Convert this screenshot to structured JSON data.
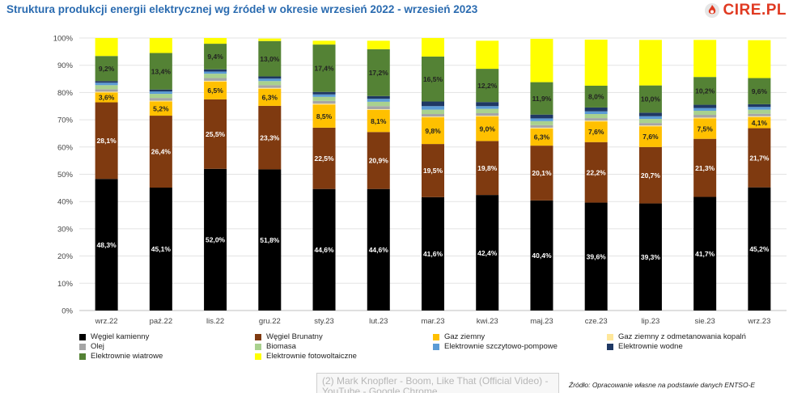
{
  "title": "Struktura produkcji energii elektrycznej wg źródeł w okresie wrzesień 2022 - wrzesień 2023",
  "logo_text": "CIRE.PL",
  "source": "Źródło: Opracowanie własne na podstawie danych ENTSO-E",
  "tooltip_text": "(2) Mark Knopfler - Boom, Like That (Official Video) - YouTube - Google Chrome",
  "colors": {
    "title": "#2a6bb0",
    "logo": "#e03a22"
  },
  "chart_data": {
    "type": "bar",
    "stacked": true,
    "percent": true,
    "categories": [
      "wrz.22",
      "paź.22",
      "lis.22",
      "gru.22",
      "sty.23",
      "lut.23",
      "mar.23",
      "kwi.23",
      "maj.23",
      "cze.23",
      "lip.23",
      "sie.23",
      "wrz.23"
    ],
    "y_ticks": [
      "0%",
      "10%",
      "20%",
      "30%",
      "40%",
      "50%",
      "60%",
      "70%",
      "80%",
      "90%",
      "100%"
    ],
    "ylim": [
      0,
      100
    ],
    "grid": true,
    "legend_position": "bottom",
    "series": [
      {
        "name": "Węgiel kamienny",
        "color": "#000000",
        "label_color": "#ffffff",
        "values": [
          48.3,
          45.1,
          52.0,
          51.8,
          44.6,
          44.6,
          41.6,
          42.4,
          40.4,
          39.6,
          39.3,
          41.7,
          45.2
        ],
        "labels": [
          "48,3%",
          "45,1%",
          "52,0%",
          "51,8%",
          "44,6%",
          "44,6%",
          "41,6%",
          "42,4%",
          "40,4%",
          "39,6%",
          "39,3%",
          "41,7%",
          "45,2%"
        ]
      },
      {
        "name": "Węgiel Brunatny",
        "color": "#7f3a10",
        "label_color": "#ffffff",
        "values": [
          28.1,
          26.4,
          25.5,
          23.3,
          22.5,
          20.9,
          19.5,
          19.8,
          20.1,
          22.2,
          20.7,
          21.3,
          21.7
        ],
        "labels": [
          "28,1%",
          "26,4%",
          "25,5%",
          "23,3%",
          "22,5%",
          "20,9%",
          "19,5%",
          "19,8%",
          "20,1%",
          "22,2%",
          "20,7%",
          "21,3%",
          "21,7%"
        ]
      },
      {
        "name": "Gaz  ziemny",
        "color": "#ffc000",
        "label_color": "#222222",
        "values": [
          3.6,
          5.2,
          6.5,
          6.3,
          8.5,
          8.1,
          9.8,
          9.0,
          6.3,
          7.6,
          7.6,
          7.5,
          4.1
        ],
        "labels": [
          "3,6%",
          "5,2%",
          "6,5%",
          "6,3%",
          "8,5%",
          "8,1%",
          "9,8%",
          "9,0%",
          "6,3%",
          "7,6%",
          "7,6%",
          "7,5%",
          "4,1%"
        ]
      },
      {
        "name": "Gaz ziemny z odmetanowania kopalń",
        "color": "#ffe79a",
        "values": [
          0.3,
          0.3,
          0.3,
          0.3,
          0.3,
          0.3,
          0.3,
          0.3,
          0.3,
          0.3,
          0.3,
          0.3,
          0.3
        ]
      },
      {
        "name": "Olej",
        "color": "#a5a5a5",
        "values": [
          0.9,
          1.0,
          1.0,
          1.0,
          1.0,
          1.1,
          0.9,
          0.9,
          0.9,
          0.9,
          0.9,
          1.0,
          0.9
        ]
      },
      {
        "name": "Biomasa",
        "color": "#a9d18e",
        "values": [
          1.5,
          1.5,
          1.6,
          1.5,
          1.5,
          1.6,
          1.6,
          1.6,
          1.5,
          1.5,
          1.5,
          1.5,
          1.5
        ]
      },
      {
        "name": "Elektrownie szczytowo-pompowe",
        "color": "#5b9bd5",
        "values": [
          0.9,
          0.9,
          0.8,
          0.9,
          0.9,
          1.1,
          1.3,
          1.0,
          1.0,
          1.0,
          1.0,
          1.0,
          1.0
        ]
      },
      {
        "name": "Elektrownie wodne",
        "color": "#1f3864",
        "values": [
          0.6,
          0.7,
          0.8,
          0.8,
          0.9,
          1.0,
          1.7,
          1.5,
          1.4,
          1.4,
          1.3,
          1.2,
          1.0
        ]
      },
      {
        "name": "Elektrownie wiatrowe",
        "color": "#548235",
        "label_color": "#222222",
        "values": [
          9.2,
          13.4,
          9.4,
          13.0,
          17.4,
          17.2,
          16.5,
          12.2,
          11.9,
          8.0,
          10.0,
          10.2,
          9.6
        ],
        "labels": [
          "9,2%",
          "13,4%",
          "9,4%",
          "13,0%",
          "17,4%",
          "17,2%",
          "16,5%",
          "12,2%",
          "11,9%",
          "8,0%",
          "10,0%",
          "10,2%",
          "9,6%"
        ]
      },
      {
        "name": "Elektrownie fotowoltaiczne",
        "color": "#ffff00",
        "values": [
          6.6,
          5.5,
          2.1,
          0.9,
          1.4,
          3.1,
          6.8,
          10.3,
          15.9,
          16.9,
          16.7,
          13.6,
          13.9
        ]
      }
    ]
  }
}
